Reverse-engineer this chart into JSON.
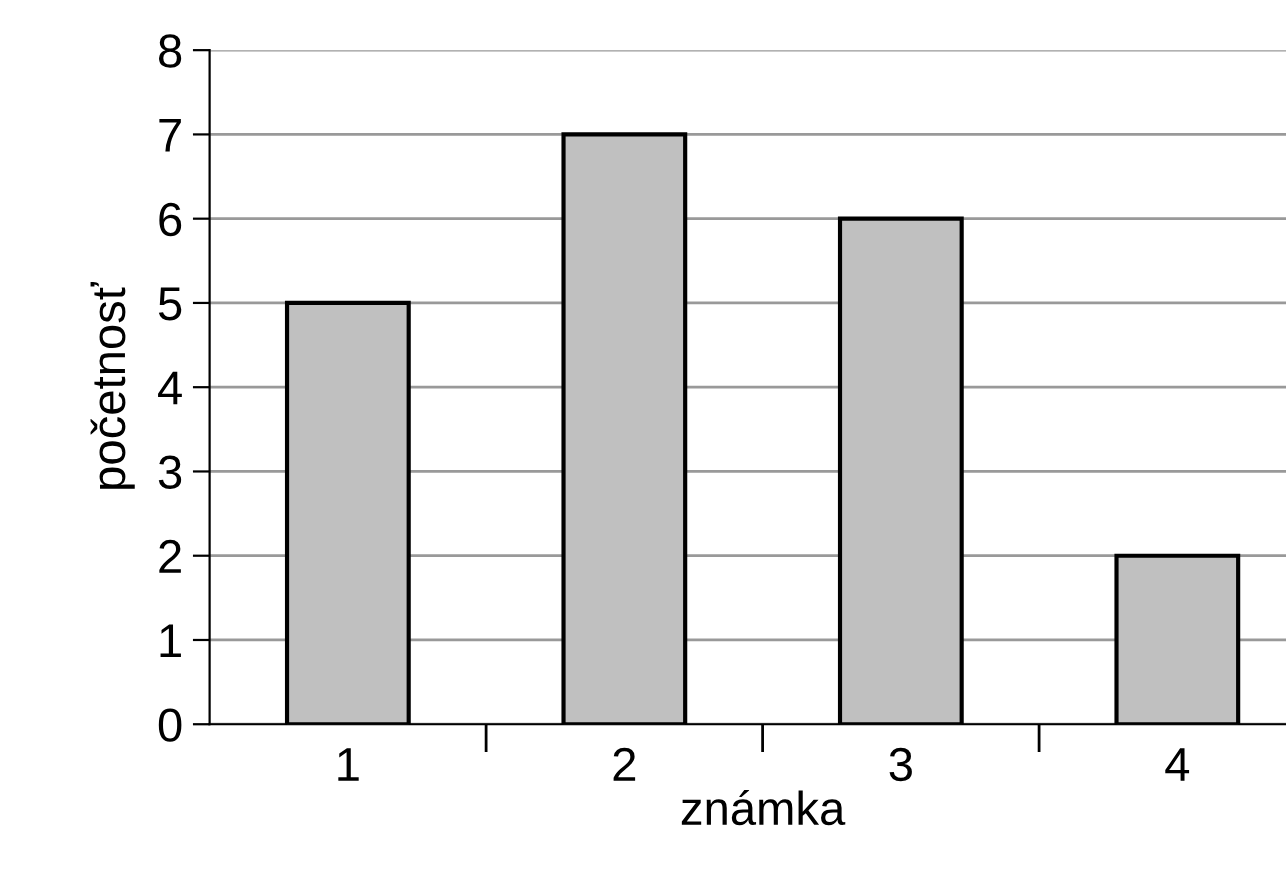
{
  "chart_data": {
    "type": "bar",
    "xlabel": "známka",
    "ylabel": "početnosť",
    "categories": [
      "1",
      "2",
      "3",
      "4"
    ],
    "values": [
      5,
      7,
      6,
      2
    ],
    "color": "#c0c0c0",
    "ylim": [
      0,
      8
    ],
    "yticks": [
      0,
      1,
      2,
      3,
      4,
      5,
      6,
      7,
      8
    ],
    "grid": "y",
    "legend": false
  }
}
